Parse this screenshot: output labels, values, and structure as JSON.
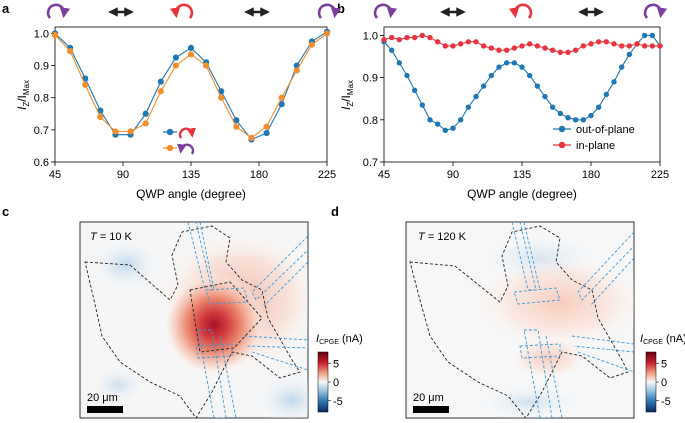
{
  "panels": [
    {
      "letter": "a"
    },
    {
      "letter": "b"
    },
    {
      "letter": "c"
    },
    {
      "letter": "d"
    }
  ],
  "colors": {
    "blue": "#1f77b4",
    "orange": "#f28e2b",
    "red": "#e8343f",
    "purple": "#7b3f9e",
    "arrow": "#222222"
  },
  "chart_data": [
    {
      "panel": "a",
      "type": "line",
      "xlabel": "QWP angle (degree)",
      "ylabel": "I_z/I_Max",
      "ylabel_parts": {
        "main": "I",
        "sub1": "Z",
        "slash": "/I",
        "sub2": "Max"
      },
      "xlim": [
        45,
        225
      ],
      "ylim": [
        0.6,
        1.02
      ],
      "xticks": [
        45,
        90,
        135,
        180,
        225
      ],
      "yticks": [
        0.6,
        0.7,
        0.8,
        0.9,
        1.0
      ],
      "ytick_labels": [
        "0.6",
        "0.7",
        "0.8",
        "0.9",
        "1.0"
      ],
      "x": [
        45,
        55,
        65,
        75,
        85,
        95,
        105,
        115,
        125,
        135,
        145,
        155,
        165,
        175,
        185,
        195,
        205,
        215,
        225
      ],
      "series": [
        {
          "name": "right-circular (blue)",
          "color": "#1f77b4",
          "values": [
            1.0,
            0.955,
            0.86,
            0.76,
            0.685,
            0.685,
            0.75,
            0.85,
            0.925,
            0.955,
            0.91,
            0.82,
            0.73,
            0.67,
            0.69,
            0.78,
            0.9,
            0.975,
            1.005
          ]
        },
        {
          "name": "left-circular (orange)",
          "color": "#f28e2b",
          "values": [
            0.995,
            0.945,
            0.84,
            0.74,
            0.695,
            0.695,
            0.72,
            0.82,
            0.9,
            0.935,
            0.9,
            0.8,
            0.71,
            0.675,
            0.71,
            0.8,
            0.885,
            0.965,
            1.0
          ]
        }
      ]
    },
    {
      "panel": "b",
      "type": "line",
      "xlabel": "QWP angle (degree)",
      "ylabel": "I_z/I_Max",
      "ylabel_parts": {
        "main": "I",
        "sub1": "Z",
        "slash": "/I",
        "sub2": "Max"
      },
      "xlim": [
        45,
        225
      ],
      "ylim": [
        0.7,
        1.02
      ],
      "xticks": [
        45,
        90,
        135,
        180,
        225
      ],
      "yticks": [
        0.7,
        0.8,
        0.9,
        1.0
      ],
      "ytick_labels": [
        "0.7",
        "0.8",
        "0.9",
        "1.0"
      ],
      "legend": [
        "out-of-plane",
        "in-plane"
      ],
      "series": [
        {
          "name": "out-of-plane",
          "color": "#1f77b4",
          "x": [
            45,
            50,
            55,
            60,
            65,
            70,
            75,
            80,
            85,
            90,
            95,
            100,
            105,
            110,
            115,
            120,
            125,
            130,
            135,
            140,
            145,
            150,
            155,
            160,
            165,
            170,
            175,
            180,
            185,
            190,
            195,
            200,
            205,
            210,
            215,
            220,
            225
          ],
          "values": [
            0.985,
            0.965,
            0.935,
            0.905,
            0.87,
            0.835,
            0.8,
            0.79,
            0.775,
            0.78,
            0.8,
            0.83,
            0.855,
            0.88,
            0.905,
            0.925,
            0.935,
            0.935,
            0.925,
            0.905,
            0.88,
            0.855,
            0.83,
            0.815,
            0.805,
            0.8,
            0.8,
            0.81,
            0.83,
            0.86,
            0.89,
            0.925,
            0.955,
            0.98,
            1.0,
            1.0,
            0.975
          ]
        },
        {
          "name": "in-plane",
          "color": "#e8343f",
          "x": [
            45,
            50,
            55,
            60,
            65,
            70,
            75,
            80,
            85,
            90,
            95,
            100,
            105,
            110,
            115,
            120,
            125,
            130,
            135,
            140,
            145,
            150,
            155,
            160,
            165,
            170,
            175,
            180,
            185,
            190,
            195,
            200,
            205,
            210,
            215,
            220,
            225
          ],
          "values": [
            0.99,
            0.995,
            0.99,
            0.995,
            0.995,
            1.0,
            0.995,
            0.985,
            0.975,
            0.975,
            0.98,
            0.985,
            0.985,
            0.975,
            0.97,
            0.965,
            0.965,
            0.97,
            0.975,
            0.98,
            0.975,
            0.97,
            0.965,
            0.96,
            0.96,
            0.965,
            0.975,
            0.98,
            0.985,
            0.985,
            0.98,
            0.975,
            0.975,
            0.98,
            0.975,
            0.975,
            0.975
          ]
        }
      ]
    },
    {
      "panel": "c",
      "type": "heatmap",
      "label_T": "T",
      "label_value": "= 10 K",
      "scalebar": "20 μm",
      "colorbar_label": "I_CPGE (nA)",
      "colorbar_label_parts": {
        "main": "I",
        "sub": "CPGE",
        "unit": " (nA)"
      },
      "colorbar_ticks": [
        "5",
        "0",
        "-5"
      ],
      "colorbar_range": [
        -8,
        8
      ]
    },
    {
      "panel": "d",
      "type": "heatmap",
      "label_T": "T",
      "label_value": "= 120 K",
      "scalebar": "20 μm",
      "colorbar_label": "I_CPGE (nA)",
      "colorbar_label_parts": {
        "main": "I",
        "sub": "CPGE",
        "unit": " (nA)"
      },
      "colorbar_ticks": [
        "5",
        "0",
        "-5"
      ],
      "colorbar_range": [
        -8,
        8
      ]
    }
  ]
}
